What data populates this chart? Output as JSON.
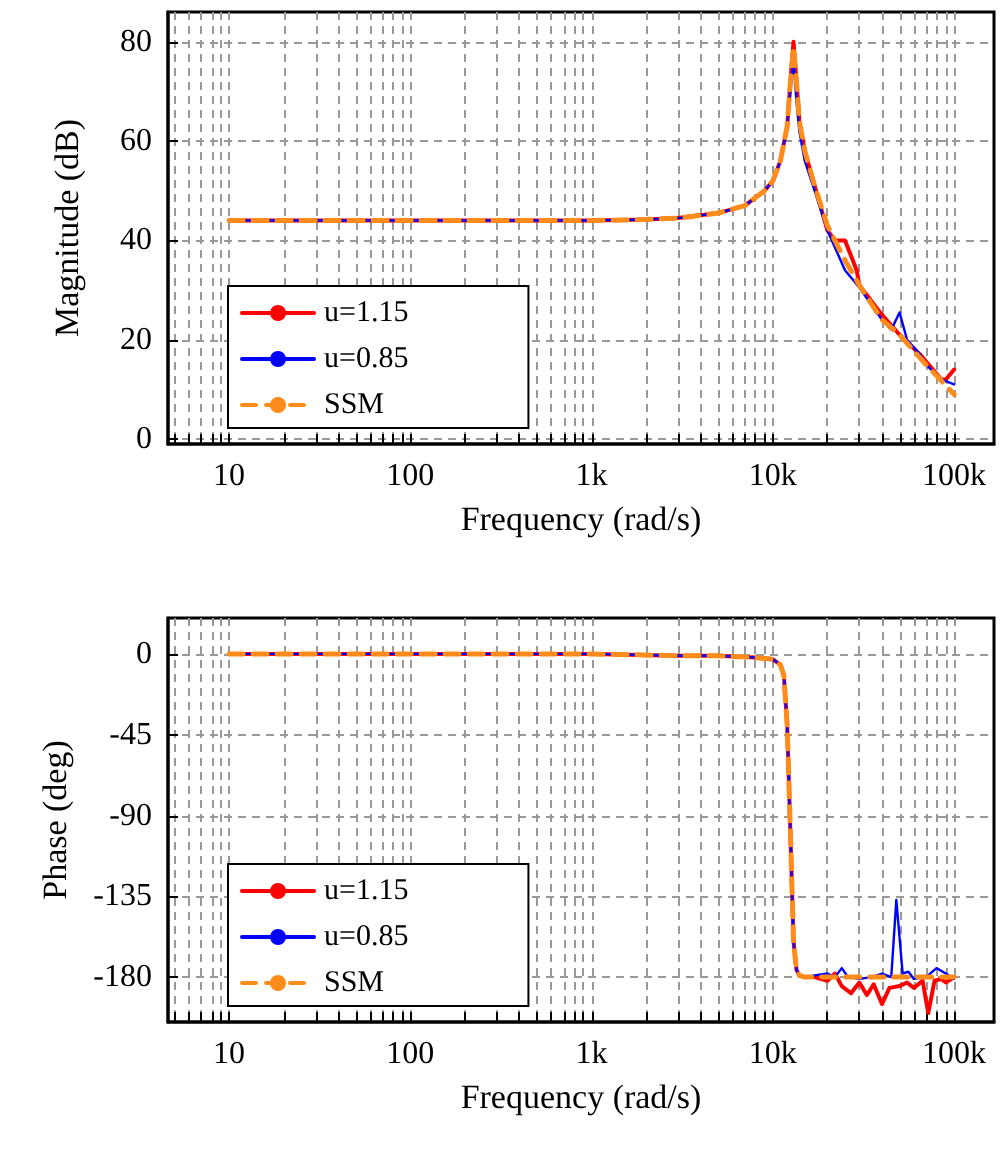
{
  "chart_data": [
    {
      "type": "line",
      "xlabel": "Frequency (rad/s)",
      "ylabel": "Magnitude (dB)",
      "log": "x",
      "grid": true,
      "legend": "bottom left",
      "line_style": "solid",
      "marker": "none",
      "xlim": [
        4.6,
        166000
      ],
      "ylim": [
        -1,
        86
      ],
      "xticks": [
        {
          "value": 5,
          "label": null
        },
        {
          "value": 6,
          "label": null
        },
        {
          "value": 7,
          "label": null
        },
        {
          "value": 8,
          "label": null
        },
        {
          "value": 9,
          "label": null
        },
        {
          "value": 10,
          "label": "10"
        },
        {
          "value": 20,
          "label": null
        },
        {
          "value": 30,
          "label": null
        },
        {
          "value": 40,
          "label": null
        },
        {
          "value": 50,
          "label": null
        },
        {
          "value": 60,
          "label": null
        },
        {
          "value": 70,
          "label": null
        },
        {
          "value": 80,
          "label": null
        },
        {
          "value": 90,
          "label": null
        },
        {
          "value": 100,
          "label": "100"
        },
        {
          "value": 200,
          "label": null
        },
        {
          "value": 300,
          "label": null
        },
        {
          "value": 400,
          "label": null
        },
        {
          "value": 500,
          "label": null
        },
        {
          "value": 600,
          "label": null
        },
        {
          "value": 700,
          "label": null
        },
        {
          "value": 800,
          "label": null
        },
        {
          "value": 900,
          "label": null
        },
        {
          "value": 1000,
          "label": "1k"
        },
        {
          "value": 2000,
          "label": null
        },
        {
          "value": 3000,
          "label": null
        },
        {
          "value": 4000,
          "label": null
        },
        {
          "value": 5000,
          "label": null
        },
        {
          "value": 6000,
          "label": null
        },
        {
          "value": 7000,
          "label": null
        },
        {
          "value": 8000,
          "label": null
        },
        {
          "value": 9000,
          "label": null
        },
        {
          "value": 10000,
          "label": "10k"
        },
        {
          "value": 20000,
          "label": null
        },
        {
          "value": 30000,
          "label": null
        },
        {
          "value": 40000,
          "label": null
        },
        {
          "value": 50000,
          "label": null
        },
        {
          "value": 60000,
          "label": null
        },
        {
          "value": 70000,
          "label": null
        },
        {
          "value": 80000,
          "label": null
        },
        {
          "value": 90000,
          "label": null
        },
        {
          "value": 100000,
          "label": "100k"
        }
      ],
      "yticks": [
        0,
        20,
        40,
        60,
        80
      ],
      "series": [
        {
          "name": "u=1.15",
          "color": "#ff0000",
          "x": [
            10,
            100,
            1000,
            2000,
            3000,
            5000,
            7000,
            9000,
            10000,
            11000,
            12000,
            12500,
            13000,
            13500,
            14000,
            15000,
            17000,
            20000,
            22000,
            25000,
            29000,
            30000,
            40000,
            50000,
            65000,
            85000,
            90000,
            100000
          ],
          "values": [
            44,
            44,
            44,
            44.2,
            44.5,
            45.5,
            47,
            50,
            52,
            56,
            63,
            72,
            80,
            72,
            64,
            58,
            51,
            42,
            40,
            40,
            34,
            31,
            25,
            21,
            17,
            12,
            12,
            14
          ]
        },
        {
          "name": "u=0.85",
          "color": "#0000ff",
          "x": [
            10,
            100,
            1000,
            2000,
            3000,
            5000,
            7000,
            9000,
            10000,
            11000,
            12000,
            12500,
            13000,
            13500,
            14000,
            15000,
            17000,
            20000,
            25000,
            30000,
            40000,
            45000,
            50000,
            55000,
            65000,
            70000,
            85000,
            100000
          ],
          "values": [
            44,
            44,
            44,
            44.2,
            44.5,
            45.5,
            47,
            50,
            52,
            56,
            63,
            70,
            76,
            68,
            62,
            56,
            50,
            42,
            34,
            30.5,
            24,
            22,
            25.5,
            20,
            17,
            15,
            12,
            11
          ]
        },
        {
          "name": "SSM",
          "color": "#ff8c1a",
          "line_style": "dashed",
          "x": [
            10,
            100,
            1000,
            2000,
            3000,
            5000,
            7000,
            9000,
            10000,
            11000,
            12000,
            12500,
            13000,
            13500,
            14000,
            15000,
            17000,
            20000,
            25000,
            30000,
            40000,
            50000,
            70000,
            100000
          ],
          "values": [
            44,
            44,
            44,
            44.2,
            44.5,
            45.5,
            47,
            50,
            52,
            56,
            63,
            72,
            79,
            72,
            64,
            58,
            51,
            43,
            36,
            31,
            24,
            21,
            15,
            9
          ]
        }
      ]
    },
    {
      "type": "line",
      "xlabel": "Frequency (rad/s)",
      "ylabel": "Phase (deg)",
      "log": "x",
      "grid": true,
      "legend": "bottom left",
      "line_style": "solid",
      "marker": "none",
      "xlim": [
        4.6,
        166000
      ],
      "ylim": [
        -205,
        20
      ],
      "xticks": [
        {
          "value": 5,
          "label": null
        },
        {
          "value": 6,
          "label": null
        },
        {
          "value": 7,
          "label": null
        },
        {
          "value": 8,
          "label": null
        },
        {
          "value": 9,
          "label": null
        },
        {
          "value": 10,
          "label": "10"
        },
        {
          "value": 20,
          "label": null
        },
        {
          "value": 30,
          "label": null
        },
        {
          "value": 40,
          "label": null
        },
        {
          "value": 50,
          "label": null
        },
        {
          "value": 60,
          "label": null
        },
        {
          "value": 70,
          "label": null
        },
        {
          "value": 80,
          "label": null
        },
        {
          "value": 90,
          "label": null
        },
        {
          "value": 100,
          "label": "100"
        },
        {
          "value": 200,
          "label": null
        },
        {
          "value": 300,
          "label": null
        },
        {
          "value": 400,
          "label": null
        },
        {
          "value": 500,
          "label": null
        },
        {
          "value": 600,
          "label": null
        },
        {
          "value": 700,
          "label": null
        },
        {
          "value": 800,
          "label": null
        },
        {
          "value": 900,
          "label": null
        },
        {
          "value": 1000,
          "label": "1k"
        },
        {
          "value": 2000,
          "label": null
        },
        {
          "value": 3000,
          "label": null
        },
        {
          "value": 4000,
          "label": null
        },
        {
          "value": 5000,
          "label": null
        },
        {
          "value": 6000,
          "label": null
        },
        {
          "value": 7000,
          "label": null
        },
        {
          "value": 8000,
          "label": null
        },
        {
          "value": 9000,
          "label": null
        },
        {
          "value": 10000,
          "label": "10k"
        },
        {
          "value": 20000,
          "label": null
        },
        {
          "value": 30000,
          "label": null
        },
        {
          "value": 40000,
          "label": null
        },
        {
          "value": 50000,
          "label": null
        },
        {
          "value": 60000,
          "label": null
        },
        {
          "value": 70000,
          "label": null
        },
        {
          "value": 80000,
          "label": null
        },
        {
          "value": 90000,
          "label": null
        },
        {
          "value": 100000,
          "label": "100k"
        }
      ],
      "yticks": [
        -180,
        -135,
        -90,
        -45,
        0
      ],
      "series": [
        {
          "name": "u=1.15",
          "color": "#ff0000",
          "x": [
            10,
            1000,
            3000,
            5000,
            8000,
            10000,
            11000,
            11500,
            12000,
            12500,
            13000,
            13500,
            14000,
            15000,
            17000,
            20000,
            22000,
            24000,
            27000,
            30000,
            33000,
            36000,
            40000,
            44000,
            50000,
            55000,
            60000,
            67000,
            72000,
            78000,
            85000,
            90000,
            100000
          ],
          "values": [
            0,
            0,
            -1,
            -1,
            -2,
            -3,
            -6,
            -12,
            -40,
            -100,
            -160,
            -176,
            -179,
            -180,
            -180,
            -182,
            -178,
            -185,
            -189,
            -183,
            -190,
            -184,
            -195,
            -186,
            -185,
            -183,
            -186,
            -182,
            -200,
            -182,
            -181,
            -183,
            -180
          ]
        },
        {
          "name": "u=0.85",
          "color": "#0000ff",
          "x": [
            10,
            1000,
            3000,
            5000,
            8000,
            10000,
            11000,
            11500,
            12000,
            12500,
            13000,
            13500,
            14000,
            15000,
            17000,
            20000,
            22000,
            24000,
            26000,
            30000,
            35000,
            40000,
            45000,
            48000,
            52000,
            56000,
            60000,
            70000,
            80000,
            90000,
            100000
          ],
          "values": [
            0,
            0,
            -1,
            -1,
            -2,
            -3,
            -6,
            -12,
            -40,
            -100,
            -160,
            -176,
            -179,
            -180,
            -179,
            -178,
            -180,
            -175,
            -180,
            -181,
            -180,
            -178,
            -180,
            -137,
            -178,
            -177,
            -181,
            -180,
            -175,
            -178,
            -181
          ]
        },
        {
          "name": "SSM",
          "color": "#ff8c1a",
          "line_style": "dashed",
          "x": [
            10,
            1000,
            3000,
            5000,
            8000,
            10000,
            11000,
            11500,
            12000,
            12500,
            13000,
            13500,
            14000,
            15000,
            17000,
            20000,
            25000,
            50000,
            100000
          ],
          "values": [
            0,
            0,
            -1,
            -1,
            -2,
            -3,
            -6,
            -12,
            -40,
            -100,
            -160,
            -176,
            -179,
            -180,
            -180,
            -180,
            -180,
            -180,
            -180
          ]
        }
      ]
    }
  ]
}
